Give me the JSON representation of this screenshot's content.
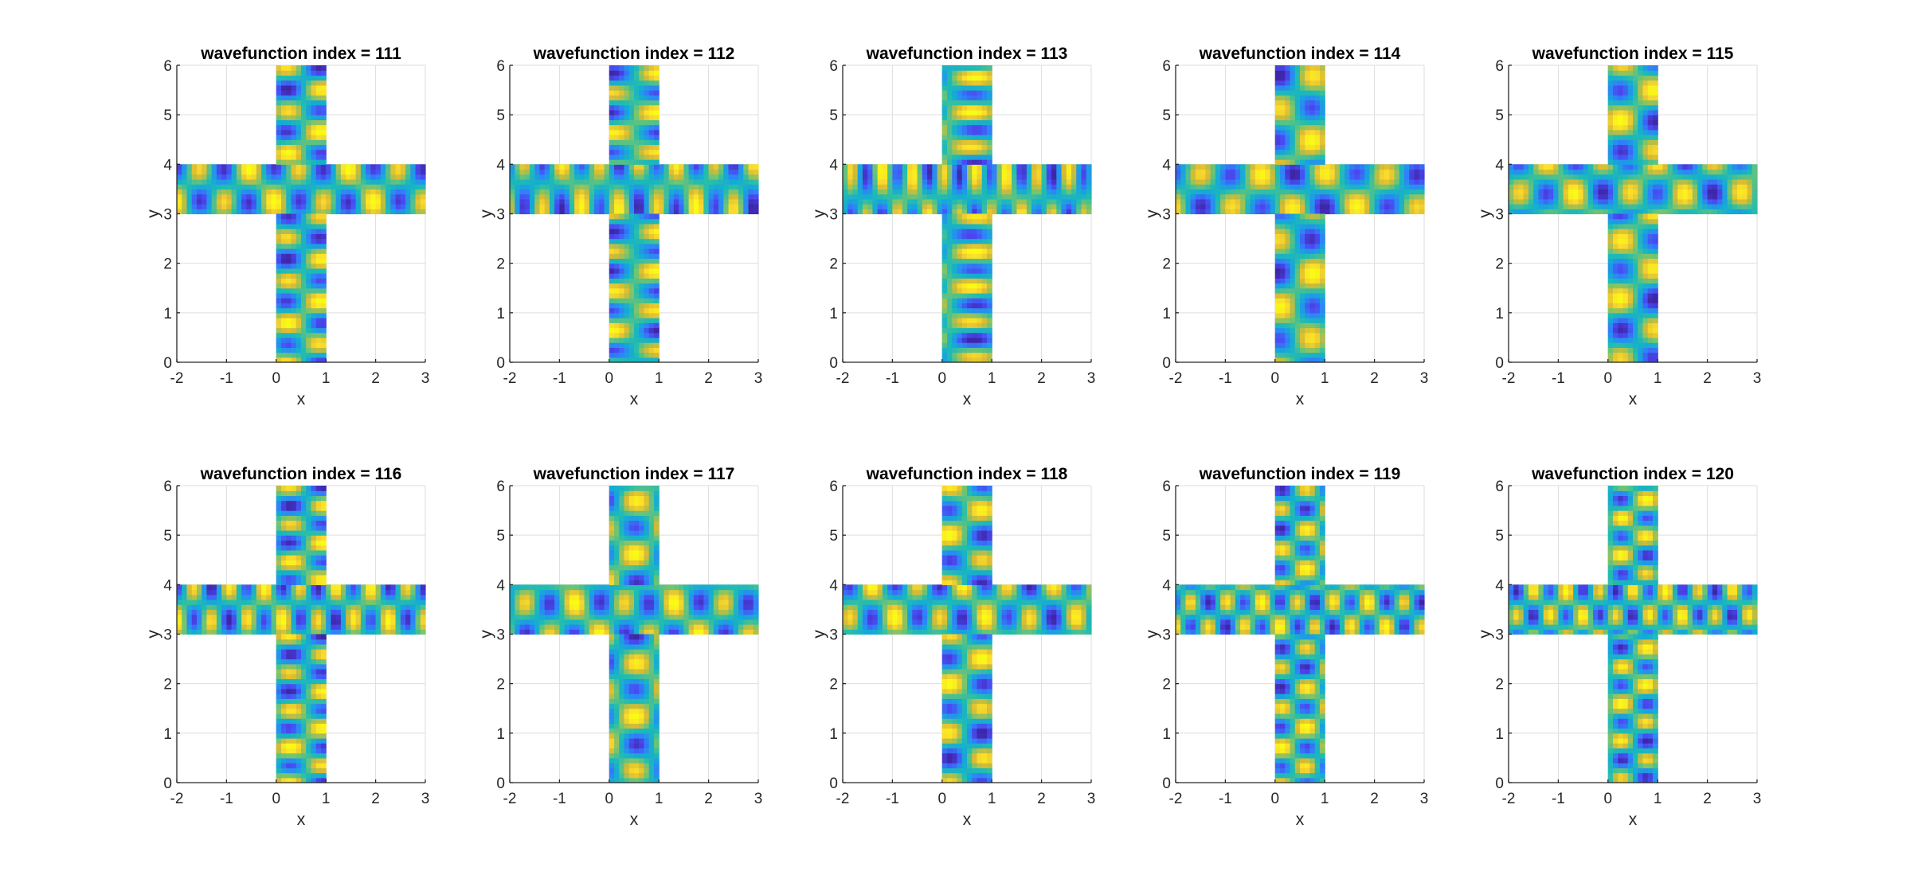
{
  "figure": {
    "layout": {
      "rows": 2,
      "cols": 5
    }
  },
  "colormap": [
    "#3e26a8",
    "#4a48f0",
    "#2f83f9",
    "#15a9d7",
    "#21bcb1",
    "#7ac56b",
    "#d9ba32",
    "#fadb2c",
    "#f9fb15"
  ],
  "colors": {
    "axis": "#262626",
    "grid": "#dedede",
    "background": "#ffffff",
    "field_base": "#1fb8c3"
  },
  "chart_data": [
    {
      "type": "heatmap",
      "title": "wavefunction index = 111",
      "xlabel": "x",
      "ylabel": "y",
      "xlim": [
        -2,
        3
      ],
      "ylim": [
        0,
        6
      ],
      "xticks": [
        "-2",
        "-1",
        "0",
        "1",
        "2",
        "3"
      ],
      "yticks": [
        "0",
        "1",
        "2",
        "3",
        "4",
        "5",
        "6"
      ],
      "grid": true,
      "domain_shape": "cross",
      "vertical_arm": {
        "x": [
          0,
          1
        ],
        "y": [
          0,
          6
        ]
      },
      "horizontal_arm": {
        "x": [
          -2,
          3
        ],
        "y": [
          3,
          4
        ]
      },
      "pattern": {
        "kx": 3,
        "ky": 14,
        "hk": 10,
        "vk": 7,
        "phase": 0.4
      }
    },
    {
      "type": "heatmap",
      "title": "wavefunction index = 112",
      "xlabel": "x",
      "ylabel": "y",
      "xlim": [
        -2,
        3
      ],
      "ylim": [
        0,
        6
      ],
      "xticks": [
        "-2",
        "-1",
        "0",
        "1",
        "2",
        "3"
      ],
      "yticks": [
        "0",
        "1",
        "2",
        "3",
        "4",
        "5",
        "6"
      ],
      "grid": true,
      "domain_shape": "cross",
      "vertical_arm": {
        "x": [
          0,
          1
        ],
        "y": [
          0,
          6
        ]
      },
      "horizontal_arm": {
        "x": [
          -2,
          3
        ],
        "y": [
          3,
          4
        ]
      },
      "pattern": {
        "kx": 2,
        "ky": 15,
        "hk": 13,
        "vk": 6,
        "phase": 1.2
      }
    },
    {
      "type": "heatmap",
      "title": "wavefunction index = 113",
      "xlabel": "x",
      "ylabel": "y",
      "xlim": [
        -2,
        3
      ],
      "ylim": [
        0,
        6
      ],
      "xticks": [
        "-2",
        "-1",
        "0",
        "1",
        "2",
        "3"
      ],
      "yticks": [
        "0",
        "1",
        "2",
        "3",
        "4",
        "5",
        "6"
      ],
      "grid": true,
      "domain_shape": "cross",
      "vertical_arm": {
        "x": [
          0,
          1
        ],
        "y": [
          0,
          6
        ]
      },
      "horizontal_arm": {
        "x": [
          -2,
          3
        ],
        "y": [
          3,
          4
        ]
      },
      "pattern": {
        "kx": 2,
        "ky": 17,
        "hk": 16,
        "vk": 5,
        "phase": 2.1
      }
    },
    {
      "type": "heatmap",
      "title": "wavefunction index = 114",
      "xlabel": "x",
      "ylabel": "y",
      "xlim": [
        -2,
        3
      ],
      "ylim": [
        0,
        6
      ],
      "xticks": [
        "-2",
        "-1",
        "0",
        "1",
        "2",
        "3"
      ],
      "yticks": [
        "0",
        "1",
        "2",
        "3",
        "4",
        "5",
        "6"
      ],
      "grid": true,
      "domain_shape": "cross",
      "vertical_arm": {
        "x": [
          0,
          1
        ],
        "y": [
          0,
          6
        ]
      },
      "horizontal_arm": {
        "x": [
          -2,
          3
        ],
        "y": [
          3,
          4
        ]
      },
      "pattern": {
        "kx": 3,
        "ky": 9,
        "hk": 8,
        "vk": 9,
        "phase": 0.9
      }
    },
    {
      "type": "heatmap",
      "title": "wavefunction index = 115",
      "xlabel": "x",
      "ylabel": "y",
      "xlim": [
        -2,
        3
      ],
      "ylim": [
        0,
        6
      ],
      "xticks": [
        "-2",
        "-1",
        "0",
        "1",
        "2",
        "3"
      ],
      "yticks": [
        "0",
        "1",
        "2",
        "3",
        "4",
        "5",
        "6"
      ],
      "grid": true,
      "domain_shape": "cross",
      "vertical_arm": {
        "x": [
          0,
          1
        ],
        "y": [
          0,
          6
        ]
      },
      "horizontal_arm": {
        "x": [
          -2,
          3
        ],
        "y": [
          3,
          4
        ]
      },
      "pattern": {
        "kx": 3,
        "ky": 10,
        "hk": 9,
        "vk": 8,
        "phase": 2.7
      }
    },
    {
      "type": "heatmap",
      "title": "wavefunction index = 116",
      "xlabel": "x",
      "ylabel": "y",
      "xlim": [
        -2,
        3
      ],
      "ylim": [
        0,
        6
      ],
      "xticks": [
        "-2",
        "-1",
        "0",
        "1",
        "2",
        "3"
      ],
      "yticks": [
        "0",
        "1",
        "2",
        "3",
        "4",
        "5",
        "6"
      ],
      "grid": true,
      "domain_shape": "cross",
      "vertical_arm": {
        "x": [
          0,
          1
        ],
        "y": [
          0,
          6
        ]
      },
      "horizontal_arm": {
        "x": [
          -2,
          3
        ],
        "y": [
          3,
          4
        ]
      },
      "pattern": {
        "kx": 3,
        "ky": 16,
        "hk": 14,
        "vk": 7,
        "phase": 0.2
      }
    },
    {
      "type": "heatmap",
      "title": "wavefunction index = 117",
      "xlabel": "x",
      "ylabel": "y",
      "xlim": [
        -2,
        3
      ],
      "ylim": [
        0,
        6
      ],
      "xticks": [
        "-2",
        "-1",
        "0",
        "1",
        "2",
        "3"
      ],
      "yticks": [
        "0",
        "1",
        "2",
        "3",
        "4",
        "5",
        "6"
      ],
      "grid": true,
      "domain_shape": "cross",
      "vertical_arm": {
        "x": [
          0,
          1
        ],
        "y": [
          0,
          6
        ]
      },
      "horizontal_arm": {
        "x": [
          -2,
          3
        ],
        "y": [
          3,
          4
        ]
      },
      "pattern": {
        "kx": 3,
        "ky": 11,
        "hk": 10,
        "vk": 9,
        "phase": 1.7
      }
    },
    {
      "type": "heatmap",
      "title": "wavefunction index = 118",
      "xlabel": "x",
      "ylabel": "y",
      "xlim": [
        -2,
        3
      ],
      "ylim": [
        0,
        6
      ],
      "xticks": [
        "-2",
        "-1",
        "0",
        "1",
        "2",
        "3"
      ],
      "yticks": [
        "0",
        "1",
        "2",
        "3",
        "4",
        "5",
        "6"
      ],
      "grid": true,
      "domain_shape": "cross",
      "vertical_arm": {
        "x": [
          0,
          1
        ],
        "y": [
          0,
          6
        ]
      },
      "horizontal_arm": {
        "x": [
          -2,
          3
        ],
        "y": [
          3,
          4
        ]
      },
      "pattern": {
        "kx": 3,
        "ky": 12,
        "hk": 11,
        "vk": 9,
        "phase": 3.1
      }
    },
    {
      "type": "heatmap",
      "title": "wavefunction index = 119",
      "xlabel": "x",
      "ylabel": "y",
      "xlim": [
        -2,
        3
      ],
      "ylim": [
        0,
        6
      ],
      "xticks": [
        "-2",
        "-1",
        "0",
        "1",
        "2",
        "3"
      ],
      "yticks": [
        "0",
        "1",
        "2",
        "3",
        "4",
        "5",
        "6"
      ],
      "grid": true,
      "domain_shape": "cross",
      "vertical_arm": {
        "x": [
          0,
          1
        ],
        "y": [
          0,
          6
        ]
      },
      "horizontal_arm": {
        "x": [
          -2,
          3
        ],
        "y": [
          3,
          4
        ]
      },
      "pattern": {
        "kx": 4,
        "ky": 15,
        "hk": 14,
        "vk": 10,
        "phase": 0.6
      }
    },
    {
      "type": "heatmap",
      "title": "wavefunction index = 120",
      "xlabel": "x",
      "ylabel": "y",
      "xlim": [
        -2,
        3
      ],
      "ylim": [
        0,
        6
      ],
      "xticks": [
        "-2",
        "-1",
        "0",
        "1",
        "2",
        "3"
      ],
      "yticks": [
        "0",
        "1",
        "2",
        "3",
        "4",
        "5",
        "6"
      ],
      "grid": true,
      "domain_shape": "cross",
      "vertical_arm": {
        "x": [
          0,
          1
        ],
        "y": [
          0,
          6
        ]
      },
      "horizontal_arm": {
        "x": [
          -2,
          3
        ],
        "y": [
          3,
          4
        ]
      },
      "pattern": {
        "kx": 4,
        "ky": 16,
        "hk": 15,
        "vk": 10,
        "phase": 2.3
      }
    }
  ]
}
